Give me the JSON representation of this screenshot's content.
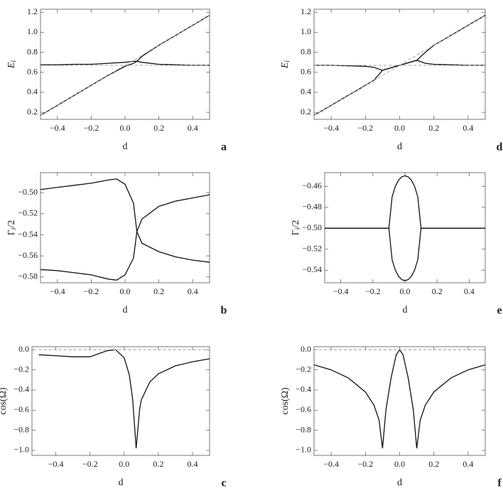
{
  "chart_data": [
    {
      "type": "line",
      "panel": "a",
      "xlabel": "d",
      "ylabel": [
        "E",
        "i"
      ],
      "x": [
        -0.5,
        -0.4,
        -0.3,
        -0.2,
        -0.1,
        0,
        0.05,
        0.07,
        0.1,
        0.2,
        0.3,
        0.4,
        0.5
      ],
      "series": [
        {
          "color": "#111111",
          "dash": false,
          "values": [
            0.17,
            0.27,
            0.37,
            0.47,
            0.57,
            0.66,
            0.69,
            0.71,
            0.76,
            0.87,
            0.97,
            1.07,
            1.17
          ]
        },
        {
          "color": "#111111",
          "dash": false,
          "values": [
            0.675,
            0.675,
            0.68,
            0.68,
            0.69,
            0.7,
            0.71,
            0.71,
            0.7,
            0.68,
            0.675,
            0.67,
            0.67
          ]
        },
        {
          "color": "#8a9bb0",
          "dash": true,
          "values": [
            0.17,
            0.27,
            0.37,
            0.47,
            0.57,
            0.67,
            0.72,
            0.74,
            0.77,
            0.87,
            0.97,
            1.07,
            1.17
          ]
        },
        {
          "color": "#8a9bb0",
          "dash": true,
          "values": [
            0.67,
            0.67,
            0.67,
            0.67,
            0.67,
            0.67,
            0.67,
            0.67,
            0.67,
            0.67,
            0.67,
            0.67,
            0.67
          ]
        }
      ],
      "xlim": [
        -0.5,
        0.5
      ],
      "ylim": [
        0.13,
        1.23
      ],
      "xticks": [
        {
          "value": -0.4,
          "label": "−0.4"
        },
        {
          "value": -0.2,
          "label": "−0.2"
        },
        {
          "value": 0,
          "label": "0.0"
        },
        0.2,
        0.4
      ],
      "yticks": [
        0.2,
        0.4,
        0.6,
        0.8,
        {
          "value": 1,
          "label": "1.0"
        },
        1.2
      ]
    },
    {
      "type": "line",
      "panel": "b",
      "xlabel": "d",
      "ylabel": [
        "Γ",
        "i",
        "/2"
      ],
      "x": [
        -0.5,
        -0.4,
        -0.3,
        -0.2,
        -0.1,
        -0.05,
        0,
        0.05,
        0.07,
        0.1,
        0.2,
        0.3,
        0.4,
        0.5
      ],
      "series": [
        {
          "color": "#111111",
          "dash": false,
          "values": [
            -0.497,
            -0.495,
            -0.493,
            -0.491,
            -0.488,
            -0.487,
            -0.492,
            -0.51,
            -0.537,
            -0.525,
            -0.513,
            -0.508,
            -0.505,
            -0.502
          ]
        },
        {
          "color": "#111111",
          "dash": false,
          "values": [
            -0.573,
            -0.574,
            -0.576,
            -0.578,
            -0.582,
            -0.583,
            -0.578,
            -0.562,
            -0.537,
            -0.548,
            -0.556,
            -0.561,
            -0.564,
            -0.566
          ]
        }
      ],
      "xlim": [
        -0.5,
        0.5
      ],
      "ylim": [
        -0.5855,
        -0.481
      ],
      "xticks": [
        {
          "value": -0.4,
          "label": "−0.4"
        },
        {
          "value": -0.2,
          "label": "−0.2"
        },
        {
          "value": 0,
          "label": "0.0"
        },
        0.2,
        0.4
      ],
      "yticks": [
        {
          "value": -0.5,
          "label": "−0.50"
        },
        {
          "value": -0.52,
          "label": "−0.52"
        },
        {
          "value": -0.54,
          "label": "−0.54"
        },
        {
          "value": -0.56,
          "label": "−0.56"
        },
        {
          "value": -0.58,
          "label": "−0.58"
        }
      ]
    },
    {
      "type": "line",
      "panel": "c",
      "xlabel": "d",
      "ylabel": [
        "cos(Ω)"
      ],
      "x": [
        -0.5,
        -0.4,
        -0.3,
        -0.2,
        -0.1,
        -0.05,
        0,
        0.03,
        0.05,
        0.07,
        0.09,
        0.1,
        0.15,
        0.2,
        0.3,
        0.4,
        0.5
      ],
      "series": [
        {
          "color": "#111111",
          "dash": false,
          "values": [
            -0.05,
            -0.06,
            -0.07,
            -0.07,
            -0.01,
            0,
            -0.08,
            -0.25,
            -0.5,
            -0.98,
            -0.6,
            -0.5,
            -0.32,
            -0.24,
            -0.16,
            -0.12,
            -0.09
          ]
        },
        {
          "color": "#8a9bb0",
          "dash": true,
          "values": [
            0,
            0,
            0,
            0,
            0,
            0,
            0,
            0,
            0,
            0,
            0,
            0,
            0,
            0,
            0,
            0,
            0
          ]
        }
      ],
      "xlim": [
        -0.54,
        0.5
      ],
      "ylim": [
        -1.05,
        0.03
      ],
      "xticks": [
        {
          "value": -0.4,
          "label": "−0.4"
        },
        {
          "value": -0.2,
          "label": "−0.2"
        },
        {
          "value": 0,
          "label": "0.0"
        },
        0.2,
        0.4
      ],
      "yticks": [
        {
          "value": 0,
          "label": "0.0"
        },
        {
          "value": -0.2,
          "label": "−0.2"
        },
        {
          "value": -0.4,
          "label": "−0.4"
        },
        {
          "value": -0.6,
          "label": "−0.6"
        },
        {
          "value": -0.8,
          "label": "−0.8"
        },
        {
          "value": -1,
          "label": "−1.0"
        }
      ]
    },
    {
      "type": "line",
      "panel": "d",
      "xlabel": "d",
      "ylabel": [
        "E",
        "i"
      ],
      "x": [
        -0.5,
        -0.4,
        -0.3,
        -0.2,
        -0.15,
        -0.1,
        -0.05,
        0,
        0.05,
        0.1,
        0.15,
        0.2,
        0.3,
        0.4,
        0.5
      ],
      "series": [
        {
          "color": "#111111",
          "dash": false,
          "values": [
            0.17,
            0.27,
            0.37,
            0.47,
            0.52,
            0.62,
            0.645,
            0.67,
            0.695,
            0.72,
            0.8,
            0.87,
            0.97,
            1.07,
            1.17
          ]
        },
        {
          "color": "#111111",
          "dash": false,
          "values": [
            0.67,
            0.67,
            0.665,
            0.66,
            0.65,
            0.62,
            0.645,
            0.67,
            0.695,
            0.72,
            0.69,
            0.68,
            0.675,
            0.67,
            0.67
          ]
        },
        {
          "color": "#8a9bb0",
          "dash": true,
          "values": [
            0.17,
            0.27,
            0.37,
            0.47,
            0.52,
            0.57,
            0.62,
            0.67,
            0.72,
            0.77,
            0.82,
            0.87,
            0.97,
            1.07,
            1.17
          ]
        },
        {
          "color": "#8a9bb0",
          "dash": true,
          "values": [
            0.67,
            0.67,
            0.67,
            0.67,
            0.67,
            0.67,
            0.67,
            0.67,
            0.67,
            0.67,
            0.67,
            0.67,
            0.67,
            0.67,
            0.67
          ]
        }
      ],
      "xlim": [
        -0.5,
        0.5
      ],
      "ylim": [
        0.13,
        1.23
      ],
      "xticks": [
        {
          "value": -0.4,
          "label": "−0.4"
        },
        {
          "value": -0.2,
          "label": "−0.2"
        },
        {
          "value": 0,
          "label": "0.0"
        },
        0.2,
        0.4
      ],
      "yticks": [
        0.2,
        0.4,
        0.6,
        0.8,
        {
          "value": 1,
          "label": "1.0"
        },
        1.2
      ]
    },
    {
      "type": "line",
      "panel": "e",
      "xlabel": "d",
      "ylabel": [
        "Γ",
        "i",
        "/2"
      ],
      "x": [
        -0.5,
        -0.4,
        -0.3,
        -0.2,
        -0.1,
        -0.08,
        -0.06,
        -0.04,
        -0.02,
        0,
        0.02,
        0.04,
        0.06,
        0.08,
        0.1,
        0.2,
        0.3,
        0.4,
        0.5
      ],
      "series": [
        {
          "color": "#111111",
          "dash": false,
          "values": [
            -0.5,
            -0.5,
            -0.5,
            -0.5,
            -0.5,
            -0.47,
            -0.46,
            -0.4542,
            -0.451,
            -0.45,
            -0.451,
            -0.4542,
            -0.46,
            -0.47,
            -0.5,
            -0.5,
            -0.5,
            -0.5,
            -0.5
          ]
        },
        {
          "color": "#111111",
          "dash": false,
          "values": [
            -0.5,
            -0.5,
            -0.5,
            -0.5,
            -0.5,
            -0.53,
            -0.54,
            -0.5458,
            -0.549,
            -0.55,
            -0.549,
            -0.5458,
            -0.54,
            -0.53,
            -0.5,
            -0.5,
            -0.5,
            -0.5,
            -0.5
          ]
        }
      ],
      "xlim": [
        -0.5,
        0.5
      ],
      "ylim": [
        -0.552,
        -0.447
      ],
      "xticks": [
        {
          "value": -0.4,
          "label": "−0.4"
        },
        {
          "value": -0.2,
          "label": "−0.2"
        },
        {
          "value": 0,
          "label": "0.0"
        },
        0.2,
        0.4
      ],
      "yticks": [
        {
          "value": -0.46,
          "label": "−0.46"
        },
        {
          "value": -0.48,
          "label": "−0.48"
        },
        {
          "value": -0.5,
          "label": "−0.50"
        },
        {
          "value": -0.52,
          "label": "−0.52"
        },
        {
          "value": -0.54,
          "label": "−0.54"
        }
      ]
    },
    {
      "type": "line",
      "panel": "f",
      "xlabel": "d",
      "ylabel": [
        "cos(Ω)"
      ],
      "x": [
        -0.5,
        -0.4,
        -0.3,
        -0.2,
        -0.15,
        -0.12,
        -0.1,
        -0.08,
        -0.05,
        -0.02,
        0,
        0.02,
        0.05,
        0.08,
        0.1,
        0.12,
        0.15,
        0.2,
        0.3,
        0.4,
        0.5
      ],
      "series": [
        {
          "color": "#111111",
          "dash": false,
          "values": [
            -0.15,
            -0.2,
            -0.28,
            -0.42,
            -0.55,
            -0.7,
            -0.98,
            -0.6,
            -0.28,
            -0.05,
            0,
            -0.05,
            -0.28,
            -0.6,
            -0.98,
            -0.7,
            -0.55,
            -0.42,
            -0.28,
            -0.2,
            -0.15
          ]
        },
        {
          "color": "#8a9bb0",
          "dash": true,
          "values": [
            0,
            0,
            0,
            0,
            0,
            0,
            0,
            0,
            0,
            0,
            0,
            0,
            0,
            0,
            0,
            0,
            0,
            0,
            0,
            0,
            0
          ]
        }
      ],
      "xlim": [
        -0.5,
        0.5
      ],
      "ylim": [
        -1.05,
        0.03
      ],
      "xticks": [
        {
          "value": -0.4,
          "label": "−0.4"
        },
        {
          "value": -0.2,
          "label": "−0.2"
        },
        {
          "value": 0,
          "label": "0.0"
        },
        0.2,
        0.4
      ],
      "yticks": [
        {
          "value": 0,
          "label": "0.0"
        },
        {
          "value": -0.2,
          "label": "−0.2"
        },
        {
          "value": -0.4,
          "label": "−0.4"
        },
        {
          "value": -0.6,
          "label": "−0.6"
        },
        {
          "value": -0.8,
          "label": "−0.8"
        },
        {
          "value": -1,
          "label": "−1.0"
        }
      ]
    }
  ]
}
